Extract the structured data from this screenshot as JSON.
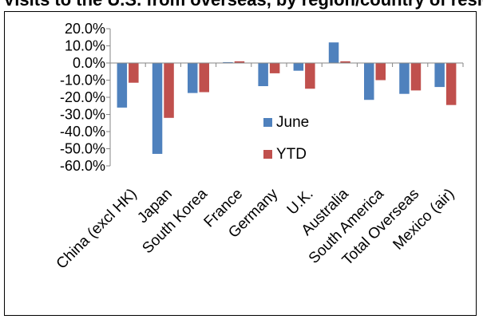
{
  "page_title": "Visits to the U.S. from overseas, by region/country of residence",
  "chart_data": {
    "type": "bar",
    "categories": [
      "China (excl HK)",
      "Japan",
      "South Korea",
      "France",
      "Germany",
      "U.K.",
      "Australia",
      "South America",
      "Total Overseas",
      "Mexico (air)"
    ],
    "series": [
      {
        "name": "June",
        "color": "#4f81bd",
        "values": [
          -26.0,
          -53.0,
          -17.5,
          0.5,
          -13.5,
          -4.5,
          12.0,
          -21.5,
          -18.0,
          -14.0
        ]
      },
      {
        "name": "YTD",
        "color": "#c0504d",
        "values": [
          -11.5,
          -32.0,
          -17.0,
          1.0,
          -6.0,
          -15.0,
          1.0,
          -10.0,
          -16.0,
          -24.5
        ]
      }
    ],
    "ylim": [
      -60,
      20
    ],
    "yticks": [
      "20.0%",
      "10.0%",
      "0.0%",
      "-10.0%",
      "-20.0%",
      "-30.0%",
      "-40.0%",
      "-50.0%",
      "-60.0%"
    ],
    "ytick_values": [
      20,
      10,
      0,
      -10,
      -20,
      -30,
      -40,
      -50,
      -60
    ],
    "grid": false,
    "legend_position": "center"
  }
}
